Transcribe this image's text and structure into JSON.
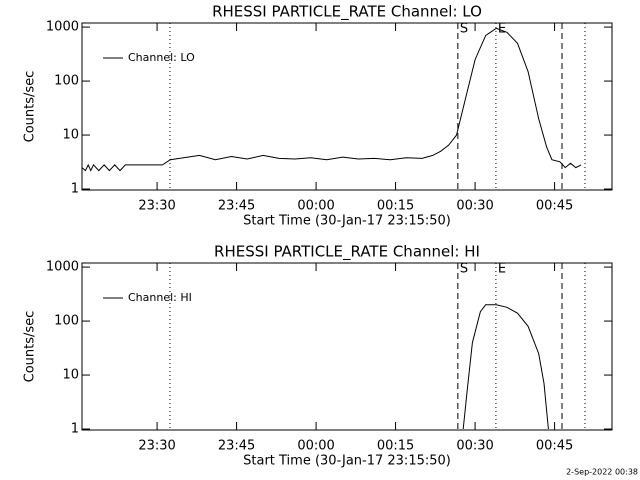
{
  "chart_data": [
    {
      "type": "line",
      "title": "RHESSI PARTICLE_RATE Channel: LO",
      "ylabel": "Counts/sec",
      "xlabel": "Start Time (30-Jan-17 23:15:50)",
      "yscale": "log",
      "ylim": [
        0.96,
        1190
      ],
      "yticks": [
        1,
        10,
        100,
        1000
      ],
      "xlim": [
        "23:15:50",
        "00:55:50"
      ],
      "xticks": [
        "23:30",
        "23:45",
        "00:00",
        "00:15",
        "00:30",
        "00:45"
      ],
      "grid": false,
      "legend": "upper left",
      "markers": [
        {
          "x": "23:32:26",
          "style": "dotted"
        },
        {
          "x": "00:26:45",
          "style": "dashed",
          "label": "S"
        },
        {
          "x": "00:33:56",
          "style": "dotted",
          "label": "E"
        },
        {
          "x": "00:46:24",
          "style": "dashed"
        },
        {
          "x": "00:50:44",
          "style": "dotted"
        }
      ],
      "series": [
        {
          "name": "Channel: LO",
          "color": "#000000",
          "x": [
            "23:15:50",
            "23:16:30",
            "23:17",
            "23:17:30",
            "23:18",
            "23:19",
            "23:20",
            "23:21",
            "23:22",
            "23:23",
            "23:24",
            "23:26",
            "23:28",
            "23:31",
            "23:32:30",
            "23:35",
            "23:38",
            "23:41",
            "23:44",
            "23:47",
            "23:50",
            "23:53",
            "23:56",
            "23:59",
            "00:02",
            "00:05",
            "00:08",
            "00:11",
            "00:14",
            "00:17",
            "00:20",
            "00:22",
            "00:23:30",
            "00:25",
            "00:26:30",
            "00:28",
            "00:30",
            "00:32",
            "00:34",
            "00:36",
            "00:38",
            "00:40",
            "00:42",
            "00:43:30",
            "00:44:30",
            "00:46",
            "00:47",
            "00:48",
            "00:49",
            "00:50"
          ],
          "values": [
            2.5,
            2.2,
            2.8,
            2.2,
            2.8,
            2.2,
            2.8,
            2.2,
            2.8,
            2.2,
            2.8,
            2.8,
            2.8,
            2.8,
            3.5,
            3.8,
            4.2,
            3.5,
            4.0,
            3.6,
            4.2,
            3.7,
            3.6,
            3.8,
            3.5,
            3.9,
            3.6,
            3.7,
            3.5,
            3.8,
            3.7,
            4.2,
            5,
            6.5,
            10,
            40,
            250,
            700,
            950,
            800,
            500,
            150,
            20,
            6,
            3.5,
            3.2,
            2.5,
            3.0,
            2.5,
            2.8
          ]
        }
      ]
    },
    {
      "type": "line",
      "title": "RHESSI PARTICLE_RATE Channel: HI",
      "ylabel": "Counts/sec",
      "xlabel": "Start Time (30-Jan-17 23:15:50)",
      "yscale": "log",
      "ylim": [
        0.96,
        1190
      ],
      "yticks": [
        1,
        10,
        100,
        1000
      ],
      "xlim": [
        "23:15:50",
        "00:55:50"
      ],
      "xticks": [
        "23:30",
        "23:45",
        "00:00",
        "00:15",
        "00:30",
        "00:45"
      ],
      "grid": false,
      "legend": "upper left",
      "markers": [
        {
          "x": "23:32:26",
          "style": "dotted"
        },
        {
          "x": "00:26:45",
          "style": "dashed",
          "label": "S"
        },
        {
          "x": "00:33:56",
          "style": "dotted",
          "label": "E"
        },
        {
          "x": "00:46:24",
          "style": "dashed"
        },
        {
          "x": "00:50:44",
          "style": "dotted"
        }
      ],
      "series": [
        {
          "name": "Channel: HI",
          "color": "#000000",
          "x": [
            "00:27:45",
            "00:28:30",
            "00:29:30",
            "00:31",
            "00:32",
            "00:34",
            "00:36",
            "00:38",
            "00:40",
            "00:42",
            "00:43",
            "00:43:50"
          ],
          "values": [
            1,
            5,
            40,
            150,
            200,
            200,
            180,
            140,
            80,
            25,
            7,
            1
          ]
        }
      ]
    }
  ],
  "footer": "2-Sep-2022 00:38"
}
